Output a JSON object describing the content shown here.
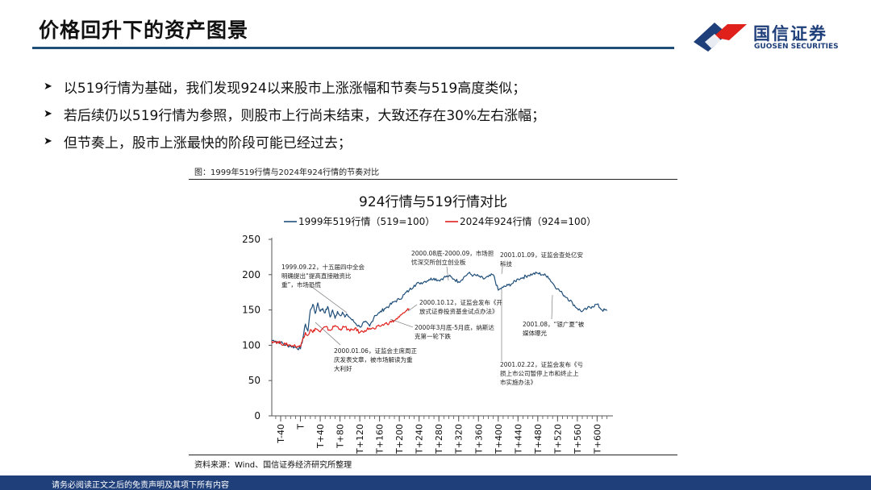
{
  "slide": {
    "title": "价格回升下的资产图景",
    "bullets": [
      "以519行情为基础，我们发现924以来股市上涨涨幅和节奏与519高度类似；",
      "若后续仍以519行情为参照，则股市上行尚未结束，大致还存在30%左右涨幅；",
      "但节奏上，股市上涨最快的阶段可能已经过去；"
    ],
    "bullet_icon": "triangle-arrow-icon"
  },
  "logo": {
    "name_cn": "国信证券",
    "name_en": "GUOSEN SECURITIES",
    "icon": "guosen-logo-icon"
  },
  "figure": {
    "caption": "图：1999年519行情与2024年924行情的节奏对比",
    "source": "资料来源：Wind、国信证券经济研究所整理"
  },
  "footer": {
    "text": "请务必阅读正文之后的免责声明及其项下所有内容"
  },
  "colors": {
    "navy": "#1f3f7a",
    "rule": "#1f4e79",
    "series1999": "#1f4e79",
    "series2024": "#e0201b",
    "logo_red": "#e0201b"
  },
  "chart_data": {
    "type": "line",
    "title": "924行情与519行情对比",
    "xlabel": "",
    "ylabel": "",
    "xlim": [
      -58,
      632
    ],
    "ylim": [
      0,
      250
    ],
    "yticks": [
      0,
      50,
      100,
      150,
      200,
      250
    ],
    "xtick_labels": [
      "T-40",
      "T",
      "T+40",
      "T+80",
      "T+120",
      "T+160",
      "T+200",
      "T+240",
      "T+280",
      "T+320",
      "T+360",
      "T+400",
      "T+440",
      "T+480",
      "T+520",
      "T+560",
      "T+600"
    ],
    "xtick_values": [
      -40,
      0,
      40,
      80,
      120,
      160,
      200,
      240,
      280,
      320,
      360,
      400,
      440,
      480,
      520,
      560,
      600
    ],
    "legend": "top",
    "grid": false,
    "series": [
      {
        "name": "1999年519行情（519=100）",
        "color": "#1f4e79",
        "x": [
          -58,
          -50,
          -40,
          -30,
          -20,
          -10,
          0,
          5,
          10,
          15,
          20,
          25,
          30,
          35,
          40,
          45,
          50,
          55,
          60,
          65,
          70,
          75,
          80,
          85,
          90,
          95,
          100,
          110,
          120,
          130,
          140,
          150,
          160,
          170,
          180,
          190,
          200,
          210,
          220,
          230,
          240,
          250,
          260,
          270,
          280,
          290,
          300,
          310,
          320,
          330,
          340,
          350,
          360,
          370,
          380,
          390,
          400,
          410,
          420,
          430,
          440,
          450,
          460,
          470,
          480,
          490,
          500,
          510,
          520,
          530,
          540,
          550,
          560,
          570,
          580,
          590,
          600,
          610,
          620
        ],
        "y": [
          107,
          106,
          104,
          100,
          99,
          97,
          95,
          110,
          130,
          120,
          150,
          158,
          145,
          160,
          148,
          152,
          146,
          155,
          140,
          150,
          138,
          148,
          142,
          147,
          140,
          143,
          139,
          132,
          126,
          133,
          127,
          142,
          146,
          152,
          156,
          162,
          165,
          172,
          178,
          185,
          188,
          190,
          193,
          195,
          192,
          196,
          198,
          194,
          190,
          196,
          202,
          199,
          198,
          194,
          197,
          200,
          178,
          182,
          185,
          188,
          194,
          196,
          199,
          201,
          202,
          200,
          198,
          188,
          180,
          173,
          167,
          160,
          152,
          148,
          152,
          155,
          158,
          150,
          149
        ]
      },
      {
        "name": "2024年924行情（924=100）",
        "color": "#e0201b",
        "x": [
          -58,
          -50,
          -40,
          -30,
          -20,
          -10,
          0,
          5,
          10,
          15,
          20,
          25,
          30,
          40,
          50,
          60,
          70,
          80,
          90,
          100,
          110,
          120,
          130,
          140,
          150,
          160,
          170,
          180,
          190,
          200,
          210,
          215,
          220
        ],
        "y": [
          106,
          105,
          103,
          101,
          100,
          99,
          98,
          110,
          118,
          114,
          122,
          118,
          124,
          119,
          126,
          121,
          128,
          123,
          126,
          120,
          124,
          118,
          121,
          124,
          123,
          127,
          130,
          132,
          135,
          140,
          146,
          149,
          152
        ]
      }
    ],
    "annotations": [
      {
        "lines": [
          "1999.09.22，十五届四中全会",
          "明确提出“提高直接融资比",
          "重”，市场恐慌"
        ]
      },
      {
        "lines": [
          "2000.01.06，证监会主席周正",
          "庆发表文章，被市场解读为重",
          "大利好"
        ]
      },
      {
        "lines": [
          "2000.10.12，证监会发布《开",
          "放式证券投资基金试点办法》"
        ]
      },
      {
        "lines": [
          "2000年3月底-5月底，纳斯达",
          "克第一轮下跌"
        ]
      },
      {
        "lines": [
          "2000.08底-2000.09，市场担",
          "忧深交所创立创业板"
        ]
      },
      {
        "lines": [
          "2001.01.09，证监会查处亿安",
          "科技"
        ]
      },
      {
        "lines": [
          "2001.02.22，证监会发布《亏",
          "损上市公司暂停上市和终止上",
          "市实施办法》"
        ]
      },
      {
        "lines": [
          "2001.08，“银广夏”被",
          "媒体曝光"
        ]
      }
    ]
  }
}
